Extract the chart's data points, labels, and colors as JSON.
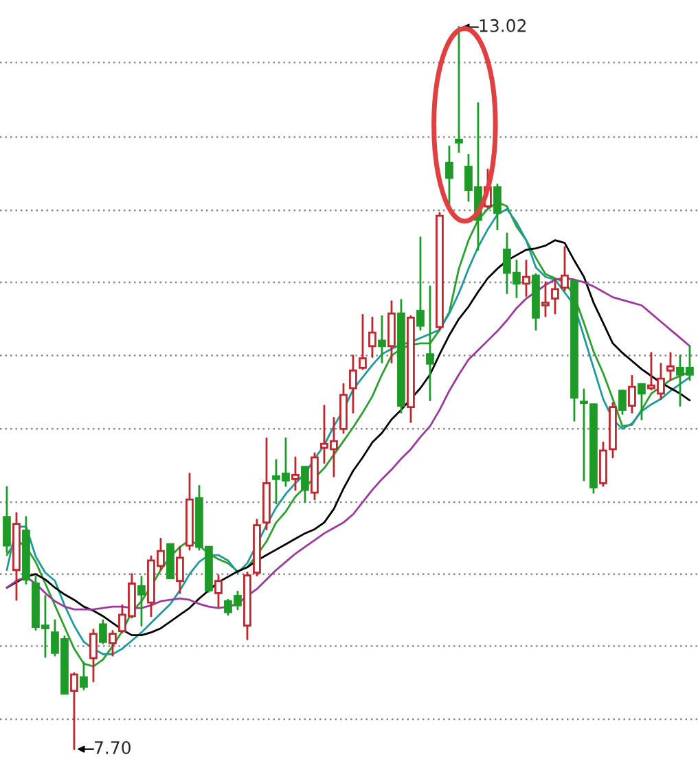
{
  "chart_data": {
    "type": "candlestick",
    "categories": [
      null,
      null,
      null,
      null,
      null,
      null,
      null,
      null,
      null,
      null,
      null,
      null,
      null,
      null,
      null,
      null,
      null,
      null,
      null,
      null,
      null,
      null,
      null,
      null,
      null,
      null,
      null,
      null,
      null,
      null,
      null,
      null,
      null,
      null,
      null,
      null,
      null,
      null,
      null,
      null,
      null,
      null,
      null,
      null,
      null,
      null,
      null,
      null,
      null,
      null,
      null,
      null,
      null,
      null,
      null,
      null,
      null,
      null,
      null,
      null,
      null,
      null,
      null,
      null,
      null,
      null,
      null,
      null,
      null,
      null,
      null,
      null
    ],
    "ohlc": [
      [
        9.41,
        9.63,
        9.15,
        9.2
      ],
      [
        9.02,
        9.44,
        8.8,
        9.36
      ],
      [
        9.31,
        9.41,
        8.92,
        8.95
      ],
      [
        8.92,
        8.97,
        8.58,
        8.6
      ],
      [
        8.61,
        8.83,
        8.38,
        8.59
      ],
      [
        8.56,
        8.65,
        8.39,
        8.41
      ],
      [
        8.51,
        8.53,
        8.11,
        8.11
      ],
      [
        8.13,
        8.26,
        7.7,
        8.25
      ],
      [
        8.23,
        8.34,
        8.14,
        8.16
      ],
      [
        8.37,
        8.58,
        8.2,
        8.55
      ],
      [
        8.62,
        8.65,
        8.48,
        8.49
      ],
      [
        8.48,
        8.57,
        8.39,
        8.55
      ],
      [
        8.57,
        8.76,
        8.56,
        8.69
      ],
      [
        8.68,
        8.99,
        8.67,
        8.92
      ],
      [
        8.9,
        8.97,
        8.61,
        8.84
      ],
      [
        8.78,
        9.12,
        8.68,
        9.09
      ],
      [
        9.05,
        9.25,
        9.02,
        9.16
      ],
      [
        9.21,
        9.21,
        8.96,
        8.96
      ],
      [
        8.94,
        9.19,
        8.85,
        9.11
      ],
      [
        9.2,
        9.73,
        9.17,
        9.54
      ],
      [
        9.55,
        9.64,
        9.17,
        9.19
      ],
      [
        9.19,
        9.19,
        8.86,
        8.87
      ],
      [
        8.85,
        8.98,
        8.75,
        8.94
      ],
      [
        8.79,
        8.8,
        8.69,
        8.71
      ],
      [
        8.83,
        8.86,
        8.73,
        8.76
      ],
      [
        8.61,
        9.0,
        8.51,
        8.98
      ],
      [
        9.0,
        9.39,
        8.98,
        9.35
      ],
      [
        9.37,
        9.99,
        9.32,
        9.66
      ],
      [
        9.71,
        9.83,
        9.51,
        9.69
      ],
      [
        9.73,
        9.99,
        9.64,
        9.68
      ],
      [
        9.69,
        9.85,
        9.61,
        9.72
      ],
      [
        9.78,
        9.78,
        9.52,
        9.61
      ],
      [
        9.59,
        9.88,
        9.54,
        9.85
      ],
      [
        9.92,
        10.23,
        9.81,
        9.95
      ],
      [
        9.91,
        10.14,
        9.71,
        9.97
      ],
      [
        10.06,
        10.39,
        10.03,
        10.31
      ],
      [
        10.36,
        10.6,
        10.18,
        10.49
      ],
      [
        10.51,
        10.9,
        10.5,
        10.58
      ],
      [
        10.67,
        10.88,
        10.59,
        10.77
      ],
      [
        10.71,
        10.89,
        10.55,
        10.67
      ],
      [
        10.67,
        11.0,
        10.55,
        10.91
      ],
      [
        10.91,
        11.01,
        10.18,
        10.23
      ],
      [
        10.22,
        10.89,
        10.11,
        10.88
      ],
      [
        10.93,
        11.47,
        10.79,
        10.82
      ],
      [
        10.61,
        11.11,
        10.27,
        10.54
      ],
      [
        10.81,
        11.65,
        10.79,
        11.63
      ],
      [
        12.02,
        12.14,
        11.7,
        11.91
      ],
      [
        12.19,
        13.02,
        12.1,
        12.17
      ],
      [
        11.99,
        12.08,
        11.74,
        11.82
      ],
      [
        11.84,
        12.46,
        11.38,
        11.6
      ],
      [
        11.7,
        11.97,
        11.69,
        11.84
      ],
      [
        11.84,
        11.86,
        11.53,
        11.65
      ],
      [
        11.38,
        11.5,
        11.06,
        11.21
      ],
      [
        11.21,
        11.3,
        11.03,
        11.13
      ],
      [
        11.13,
        11.3,
        11.04,
        11.18
      ],
      [
        11.19,
        11.2,
        10.79,
        10.88
      ],
      [
        10.97,
        11.14,
        10.89,
        10.99
      ],
      [
        11.02,
        11.16,
        10.91,
        11.09
      ],
      [
        11.1,
        11.4,
        11.08,
        11.19
      ],
      [
        11.15,
        11.15,
        10.12,
        10.29
      ],
      [
        10.26,
        10.35,
        9.68,
        10.25
      ],
      [
        10.24,
        10.24,
        9.59,
        9.63
      ],
      [
        9.66,
        9.96,
        9.64,
        9.9
      ],
      [
        9.91,
        10.25,
        9.85,
        10.22
      ],
      [
        10.34,
        10.34,
        10.17,
        10.2
      ],
      [
        10.23,
        10.45,
        10.18,
        10.37
      ],
      [
        10.39,
        10.39,
        10.13,
        10.32
      ],
      [
        10.36,
        10.62,
        10.35,
        10.38
      ],
      [
        10.32,
        10.54,
        10.28,
        10.43
      ],
      [
        10.49,
        10.62,
        10.42,
        10.52
      ],
      [
        10.51,
        10.6,
        10.23,
        10.46
      ],
      [
        10.51,
        10.67,
        10.42,
        10.46
      ]
    ],
    "series": [
      {
        "type": "line",
        "color": "#2ca02c",
        "values": [
          9.13,
          9.24,
          9.19,
          9.08,
          8.92,
          8.76,
          8.6,
          8.44,
          8.33,
          8.31,
          8.36,
          8.46,
          8.57,
          8.71,
          8.79,
          8.9,
          9.02,
          9.12,
          9.19,
          9.24,
          9.2,
          9.14,
          9.1,
          9.07,
          9.01,
          9.04,
          9.13,
          9.23,
          9.37,
          9.45,
          9.56,
          9.63,
          9.7,
          9.77,
          9.87,
          9.97,
          10.07,
          10.18,
          10.3,
          10.46,
          10.6,
          10.65,
          10.68,
          10.69,
          10.69,
          10.79,
          10.92,
          11.24,
          11.45,
          11.6,
          11.68,
          11.73,
          11.7,
          11.55,
          11.45,
          11.32,
          11.2,
          11.17,
          11.14,
          11.04,
          10.84,
          10.63,
          10.47,
          10.28,
          10.08,
          10.09,
          10.2,
          10.32,
          10.37,
          10.42,
          10.45,
          10.48
        ]
      },
      {
        "type": "line",
        "color": "#1f9a9a",
        "values": [
          9.02,
          9.34,
          9.34,
          9.12,
          9.0,
          8.94,
          8.76,
          8.61,
          8.49,
          8.44,
          8.4,
          8.4,
          8.44,
          8.5,
          8.56,
          8.63,
          8.7,
          8.77,
          8.87,
          8.99,
          9.08,
          9.13,
          9.13,
          9.09,
          9.0,
          9.07,
          null,
          9.35,
          9.48,
          9.58,
          9.66,
          9.73,
          9.84,
          9.94,
          10.08,
          10.2,
          10.35,
          10.44,
          10.53,
          10.61,
          10.65,
          10.68,
          10.7,
          10.73,
          10.76,
          10.79,
          10.91,
          11.06,
          11.24,
          11.4,
          11.53,
          11.64,
          11.68,
          11.58,
          11.45,
          11.25,
          11.18,
          11.16,
          null,
          10.97,
          10.74,
          10.51,
          10.28,
          10.13,
          10.06,
          10.1,
          10.19,
          10.24,
          10.28,
          10.34,
          10.39,
          10.44
        ]
      },
      {
        "type": "line",
        "color": "#000000",
        "values": [
          8.89,
          8.93,
          8.97,
          8.99,
          8.95,
          8.89,
          8.84,
          8.8,
          8.75,
          8.72,
          8.68,
          8.63,
          8.58,
          8.54,
          8.54,
          8.56,
          8.59,
          8.64,
          8.69,
          8.74,
          8.81,
          8.87,
          8.93,
          8.97,
          9.01,
          9.04,
          9.09,
          9.13,
          9.17,
          9.21,
          9.25,
          9.29,
          9.32,
          9.37,
          9.47,
          9.62,
          9.75,
          9.85,
          9.96,
          10.03,
          10.13,
          10.2,
          10.28,
          10.36,
          10.46,
          10.61,
          10.75,
          10.87,
          10.96,
          11.07,
          11.17,
          11.24,
          11.3,
          11.34,
          11.38,
          11.39,
          11.41,
          11.45,
          11.43,
          11.3,
          11.18,
          10.99,
          10.84,
          10.69,
          10.62,
          10.56,
          10.5,
          10.45,
          10.4,
          10.36,
          10.32,
          10.27
        ]
      },
      {
        "type": "line",
        "color": "#9b3a9b",
        "values": [
          8.89,
          8.94,
          8.97,
          8.92,
          8.85,
          8.79,
          8.75,
          8.73,
          8.73,
          8.73,
          8.74,
          8.75,
          8.75,
          8.74,
          8.74,
          8.76,
          8.79,
          8.8,
          8.81,
          8.8,
          8.77,
          8.75,
          8.74,
          8.75,
          8.77,
          8.83,
          8.88,
          8.95,
          9.02,
          9.08,
          9.14,
          9.19,
          9.24,
          9.29,
          9.33,
          9.37,
          9.43,
          9.52,
          9.61,
          9.69,
          9.76,
          9.84,
          9.91,
          10.0,
          10.08,
          10.2,
          10.34,
          10.46,
          10.57,
          10.64,
          10.71,
          10.78,
          10.86,
          10.95,
          11.02,
          11.07,
          11.12,
          11.16,
          11.17,
          11.16,
          11.14,
          11.11,
          11.07,
          11.03,
          11.01,
          10.99,
          10.97,
          10.91,
          10.85,
          10.79,
          10.73,
          10.67
        ]
      }
    ],
    "ylim": [
      7.48,
      13.22
    ],
    "yticks": [
      {
        "value": 7.92,
        "label": null
      },
      {
        "value": 8.46,
        "label": null
      },
      {
        "value": 8.99,
        "label": null
      },
      {
        "value": 9.52,
        "label": null
      },
      {
        "value": 10.06,
        "label": null
      },
      {
        "value": 10.6,
        "label": null
      },
      {
        "value": 11.14,
        "label": null
      },
      {
        "value": 11.67,
        "label": null
      },
      {
        "value": 12.21,
        "label": null
      },
      {
        "value": 12.76,
        "label": null
      }
    ],
    "grid": "y",
    "annotations": [
      "13.02",
      "7.70"
    ]
  }
}
